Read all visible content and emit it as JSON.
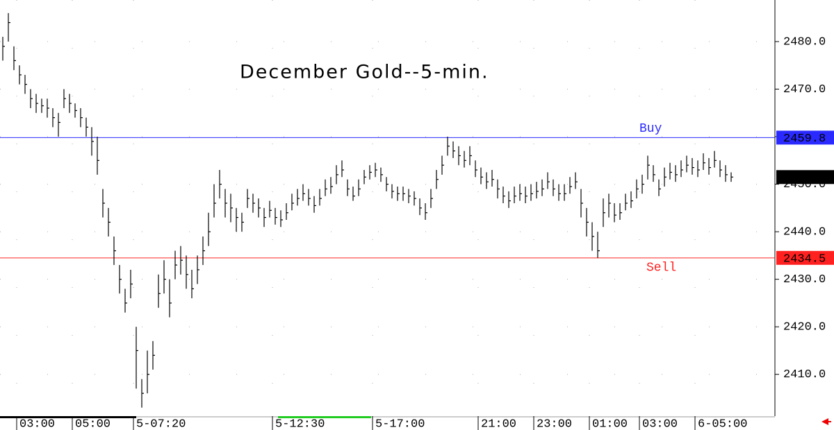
{
  "chart_data": {
    "type": "ohlc",
    "title": "December Gold--5-min.",
    "color": "#000000",
    "ylim": [
      2401.5,
      2488.75
    ],
    "yticks": [
      {
        "value": 2410,
        "label": "2410.0"
      },
      {
        "value": 2420,
        "label": "2420.0"
      },
      {
        "value": 2430,
        "label": "2430.0"
      },
      {
        "value": 2440,
        "label": "2440.0"
      },
      {
        "value": 2450,
        "label": "2450.0"
      },
      {
        "value": 2460,
        "label": "2460.0"
      },
      {
        "value": 2470,
        "label": "2470.0"
      },
      {
        "value": 2480,
        "label": "2480.0"
      }
    ],
    "grid": true,
    "levels": [
      {
        "label": "Buy",
        "value": 2459.8,
        "color": "#2a2aff"
      },
      {
        "label": "Sell",
        "value": 2434.5,
        "color": "#ff2020"
      }
    ],
    "categories": [
      null,
      null,
      null,
      "03:00",
      null,
      null,
      null,
      null,
      null,
      null,
      null,
      null,
      null,
      "05:00",
      null,
      null,
      null,
      null,
      null,
      null,
      null,
      null,
      null,
      null,
      "5-07:20",
      null,
      null,
      null,
      null,
      null,
      null,
      null,
      null,
      null,
      null,
      null,
      null,
      null,
      null,
      null,
      null,
      null,
      null,
      null,
      null,
      null,
      null,
      null,
      null,
      "5-12:30",
      null,
      null,
      null,
      null,
      null,
      null,
      null,
      null,
      null,
      null,
      null,
      null,
      null,
      null,
      null,
      null,
      null,
      "5-17:00",
      null,
      null,
      null,
      null,
      null,
      null,
      null,
      null,
      null,
      null,
      null,
      null,
      null,
      null,
      null,
      null,
      null,
      null,
      "21:00",
      null,
      null,
      null,
      null,
      null,
      null,
      null,
      null,
      null,
      "23:00",
      null,
      null,
      null,
      null,
      null,
      null,
      null,
      null,
      null,
      "01:00",
      null,
      null,
      null,
      null,
      null,
      null,
      null,
      null,
      "03:00",
      null,
      null,
      null,
      null,
      null,
      null,
      null,
      null,
      null,
      "6-05:00",
      null,
      null,
      null,
      null,
      null,
      null
    ],
    "high": [
      2481,
      2486,
      2479,
      2475,
      2473,
      2470,
      2469,
      2468,
      2468,
      2466,
      2465,
      2470,
      2469,
      2467,
      2466,
      2464,
      2462,
      2460,
      2449,
      2445,
      2439,
      2433,
      2428,
      2432,
      2420,
      2409,
      2415,
      2417,
      2431,
      2434,
      2430,
      2436,
      2437,
      2435,
      2432,
      2435,
      2439,
      2444,
      2450,
      2453,
      2449,
      2448,
      2445,
      2444,
      2449,
      2448,
      2447,
      2445,
      2446.5,
      2445,
      2444.5,
      2446,
      2448,
      2449,
      2450,
      2449,
      2447.5,
      2449,
      2451,
      2451.5,
      2454,
      2455,
      2451,
      2449.5,
      2451,
      2453,
      2454,
      2454.5,
      2453.5,
      2451.5,
      2450,
      2449.5,
      2449.5,
      2449,
      2448.5,
      2447,
      2446,
      2449,
      2453,
      2456,
      2460,
      2459,
      2458,
      2457,
      2458,
      2455,
      2453.5,
      2452.5,
      2453,
      2451,
      2449.5,
      2448.5,
      2449.5,
      2450,
      2449.5,
      2450,
      2450.5,
      2451,
      2452.5,
      2451,
      2450,
      2450,
      2451.5,
      2452.5,
      2449,
      2445,
      2442,
      2440,
      2447,
      2448,
      2446,
      2446,
      2448,
      2448.5,
      2451,
      2452,
      2456,
      2454,
      2451,
      2453.5,
      2454.5,
      2454,
      2455,
      2456,
      2455.5,
      2455,
      2456.5,
      2455.5,
      2457,
      2455,
      2454,
      2452.5
    ],
    "low": [
      2476,
      2480,
      2474,
      2471,
      2469,
      2466,
      2465,
      2465,
      2464,
      2462,
      2460,
      2466,
      2465,
      2464,
      2462,
      2460,
      2456,
      2452,
      2443,
      2439,
      2433,
      2427,
      2423,
      2426,
      2407,
      2403,
      2406,
      2411,
      2424,
      2427,
      2422,
      2430,
      2431,
      2428,
      2426,
      2429,
      2433,
      2437,
      2443,
      2447,
      2443,
      2442,
      2440,
      2440,
      2445,
      2444,
      2443,
      2441,
      2443,
      2441.5,
      2441,
      2442.5,
      2444.5,
      2445.5,
      2446.5,
      2445.5,
      2444,
      2445.5,
      2447.5,
      2448,
      2450,
      2451.5,
      2447.5,
      2446.5,
      2447.5,
      2450,
      2451,
      2451.5,
      2450.5,
      2448.5,
      2447,
      2446.5,
      2446.5,
      2446,
      2445.5,
      2443.5,
      2442.5,
      2445,
      2449,
      2452,
      2456,
      2455.5,
      2454,
      2453.5,
      2454,
      2451.5,
      2450,
      2449,
      2449.5,
      2447,
      2446,
      2445,
      2446,
      2446.5,
      2446,
      2446.5,
      2447,
      2447.5,
      2449,
      2447.5,
      2446.5,
      2446.5,
      2448,
      2449,
      2443,
      2439,
      2436,
      2434.5,
      2441,
      2443,
      2442,
      2442.5,
      2444.5,
      2445,
      2447,
      2448,
      2451,
      2450.5,
      2447.5,
      2449.5,
      2451,
      2450.5,
      2451.5,
      2452.5,
      2452,
      2451.5,
      2453,
      2452,
      2453.5,
      2451.5,
      2450.5,
      2450.5
    ],
    "close": [
      2479,
      2484,
      2476,
      2473,
      2471,
      2468,
      2467,
      2466.5,
      2466,
      2464,
      2463,
      2468,
      2467,
      2465.5,
      2464,
      2462,
      2459,
      2455,
      2446,
      2442,
      2436,
      2430,
      2425,
      2429,
      2415,
      2406,
      2410,
      2414,
      2427,
      2430,
      2425,
      2433,
      2434,
      2431,
      2428,
      2432,
      2436,
      2440,
      2446,
      2450,
      2446,
      2445,
      2443,
      2442,
      2447,
      2446,
      2445,
      2443,
      2444.5,
      2443,
      2442.5,
      2444,
      2446,
      2447,
      2448,
      2447,
      2445.5,
      2447,
      2449,
      2449.5,
      2452,
      2453,
      2449,
      2447.5,
      2449,
      2451.5,
      2452.5,
      2453,
      2452,
      2450,
      2448.5,
      2448,
      2448,
      2447.5,
      2447,
      2445,
      2444,
      2447,
      2451,
      2454,
      2458,
      2457,
      2456,
      2455,
      2456,
      2453,
      2451.5,
      2450.5,
      2451,
      2449,
      2447.5,
      2446.5,
      2447.5,
      2448,
      2447.5,
      2448,
      2448.5,
      2449,
      2450.5,
      2449,
      2448,
      2448,
      2449.5,
      2450.5,
      2446,
      2442,
      2439,
      2436,
      2444,
      2446,
      2443.5,
      2444,
      2446,
      2446.5,
      2449,
      2450,
      2454,
      2452,
      2449,
      2451.5,
      2452.5,
      2452,
      2453,
      2454,
      2453.5,
      2453,
      2454.5,
      2453.5,
      2455,
      2453,
      2452,
      2451.5
    ]
  }
}
